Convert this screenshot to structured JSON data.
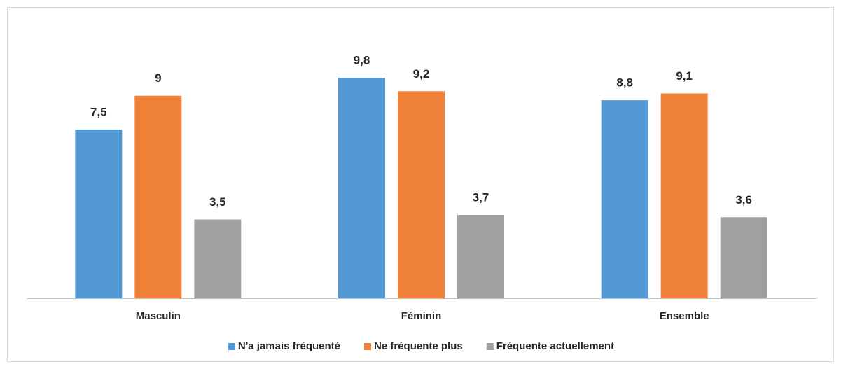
{
  "chart_data": {
    "type": "bar",
    "categories": [
      "Masculin",
      "Féminin",
      "Ensemble"
    ],
    "series": [
      {
        "name": "N'a jamais fréquenté",
        "color": "#5298d4",
        "values": [
          7.5,
          9.8,
          8.8
        ],
        "value_labels": [
          "7,5",
          "9,8",
          "8,8"
        ]
      },
      {
        "name": "Ne fréquente plus",
        "color": "#f0823a",
        "values": [
          9,
          9.2,
          9.1
        ],
        "value_labels": [
          "9",
          "9,2",
          "9,1"
        ]
      },
      {
        "name": "Fréquente actuellement",
        "color": "#a0a0a0",
        "values": [
          3.5,
          3.7,
          3.6
        ],
        "value_labels": [
          "3,5",
          "3,7",
          "3,6"
        ]
      }
    ],
    "legend": "bottom"
  }
}
